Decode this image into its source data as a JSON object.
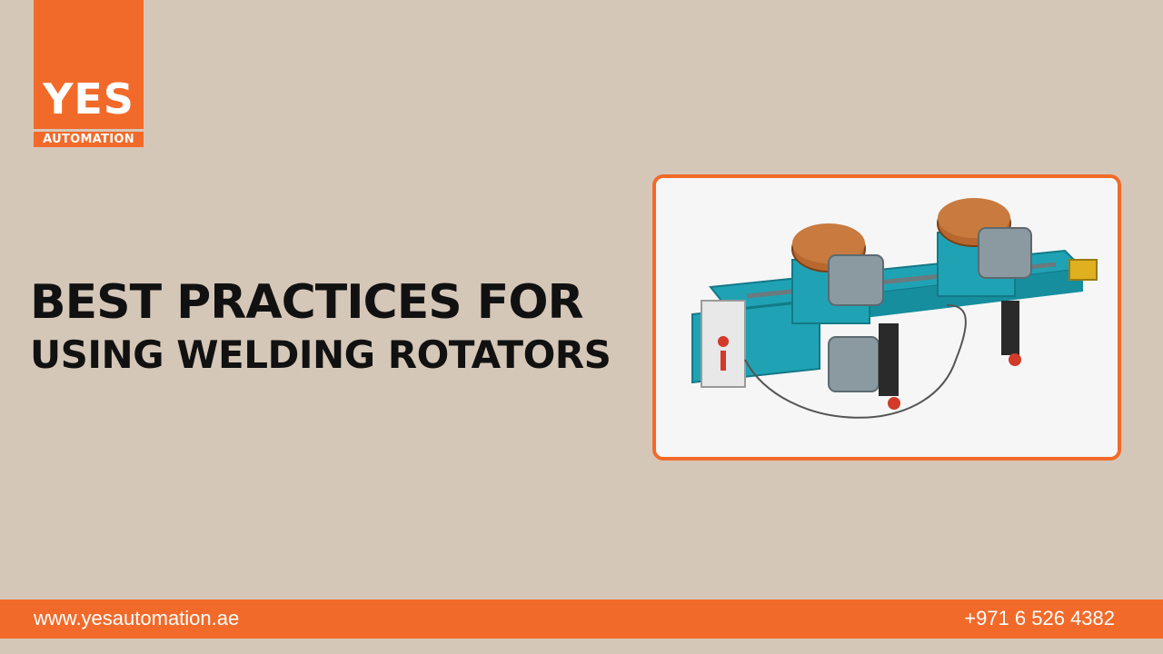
{
  "brand": {
    "logo_text": "YES",
    "logo_subtext": "AUTOMATION",
    "accent_color": "#f26a2a",
    "background_color": "#d5c7b8"
  },
  "headline": {
    "line1": "BEST PRACTICES FOR",
    "line2": "USING WELDING ROTATORS"
  },
  "photo": {
    "icon": "welding-rotator-machine-image"
  },
  "footer": {
    "website": "www.yesautomation.ae",
    "phone": "+971 6 526 4382"
  }
}
